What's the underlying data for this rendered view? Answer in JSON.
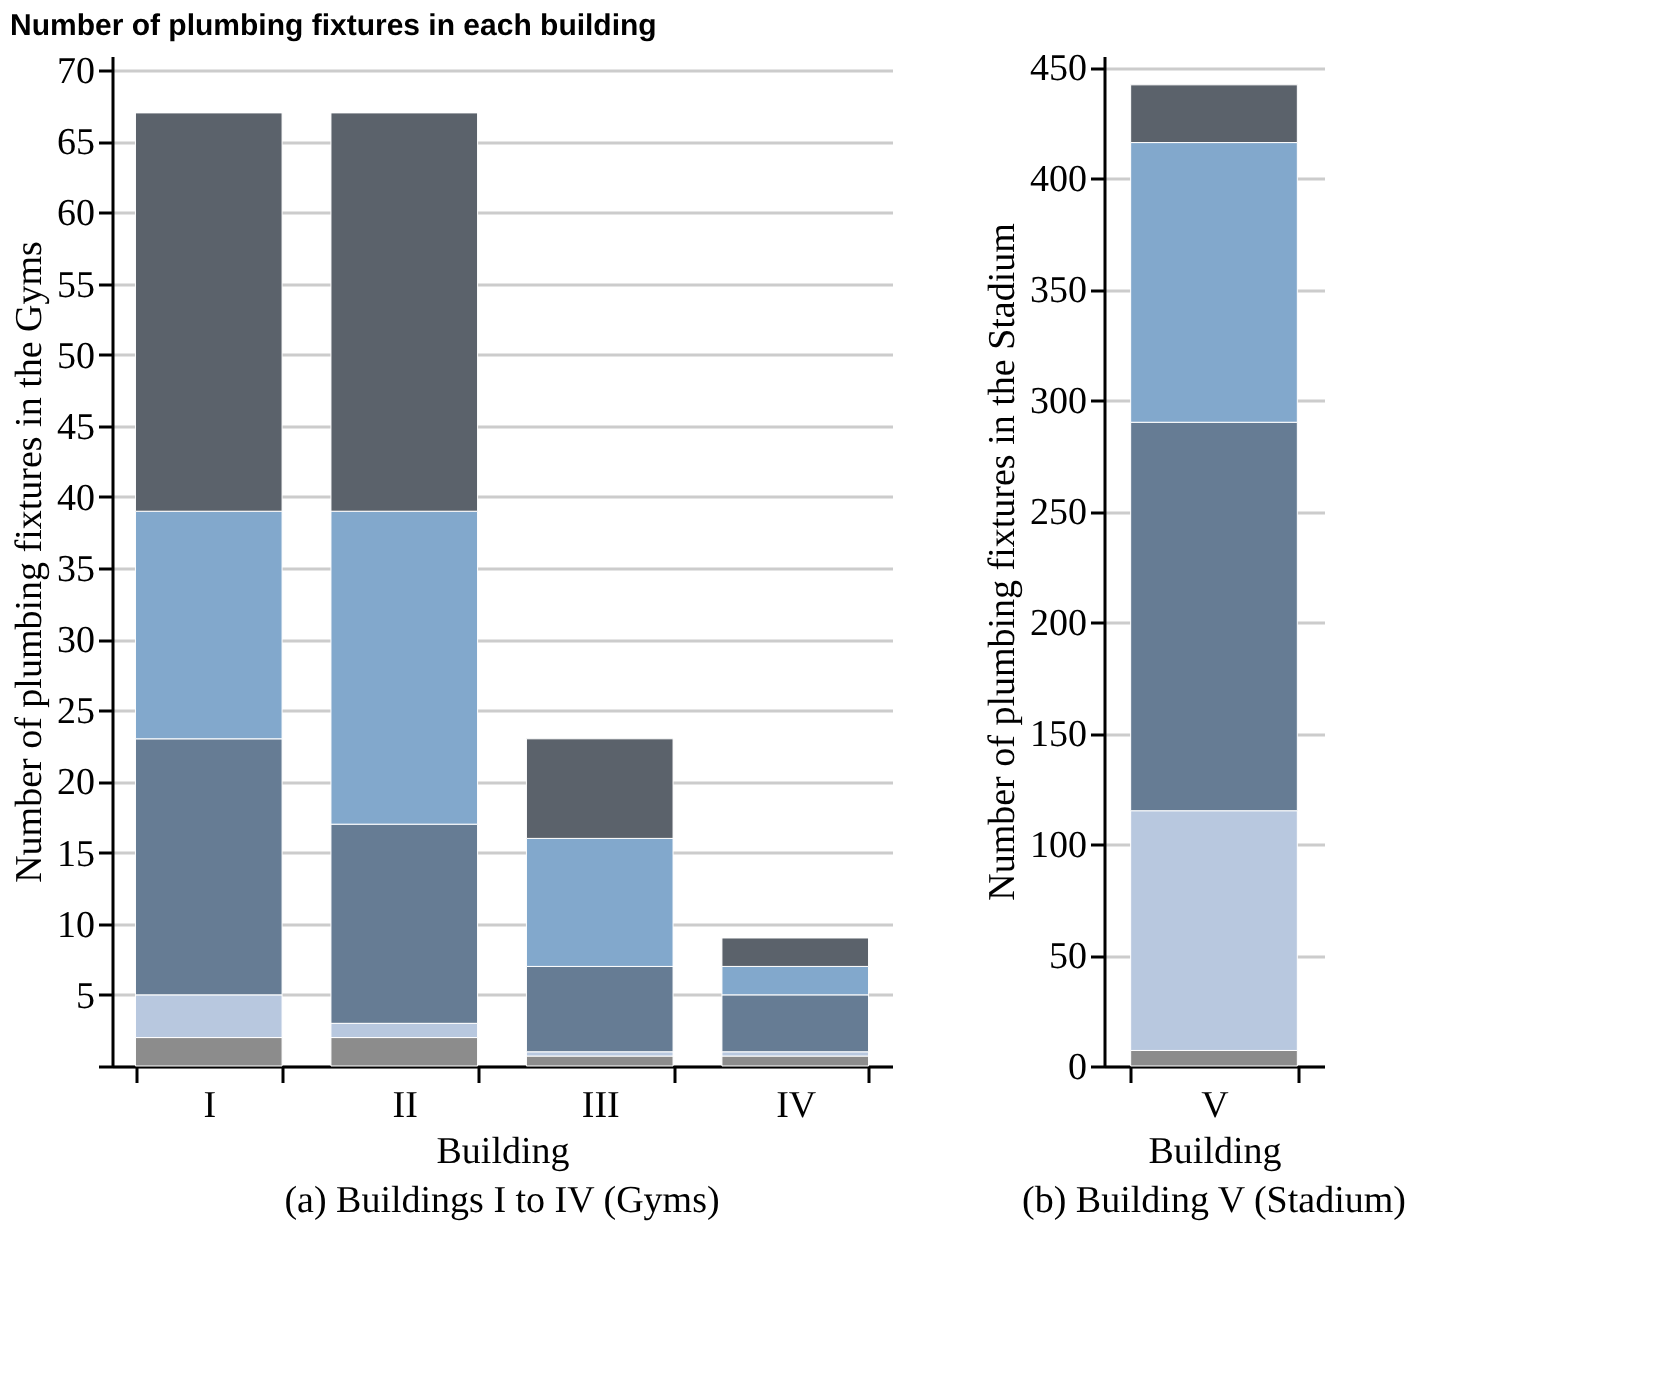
{
  "chart_data": [
    {
      "type": "bar",
      "title": "Number of plumbing fixtures in each building",
      "xlabel": "Building",
      "ylabel": "Number of plumbing fixtures in the Gyms",
      "annotations": [
        "(a) Buildings I to IV (Gyms)"
      ],
      "categories": [
        "I",
        "II",
        "III",
        "IV"
      ],
      "stacked": true,
      "grid": "y",
      "ylim": [
        0,
        71
      ],
      "yticks": [
        {
          "value": 0,
          "label": null
        },
        5,
        10,
        15,
        20,
        25,
        30,
        35,
        40,
        45,
        50,
        55,
        60,
        65,
        70
      ],
      "series": [
        {
          "color": "#8c8c8c",
          "values": [
            2,
            2,
            0.7,
            0.7
          ]
        },
        {
          "color": "#b8c8df",
          "values": [
            3,
            1,
            0.3,
            0.3
          ]
        },
        {
          "color": "#667c94",
          "values": [
            18,
            14,
            6,
            4
          ]
        },
        {
          "color": "#82a8cc",
          "values": [
            16,
            22,
            9,
            2
          ]
        },
        {
          "color": "#5b626b",
          "values": [
            28,
            28,
            7,
            2
          ]
        }
      ]
    },
    {
      "type": "bar",
      "xlabel": "Building",
      "ylabel": "Number of plumbing fixtures in the Stadium",
      "annotations": [
        "(b) Building V (Stadium)"
      ],
      "categories": [
        "V"
      ],
      "stacked": true,
      "grid": "y",
      "ylim": [
        0,
        455
      ],
      "yticks": [
        0,
        50,
        100,
        150,
        200,
        250,
        300,
        350,
        400,
        450
      ],
      "series": [
        {
          "color": "#8c8c8c",
          "values": [
            7
          ]
        },
        {
          "color": "#b8c8df",
          "values": [
            108
          ]
        },
        {
          "color": "#667c94",
          "values": [
            175
          ]
        },
        {
          "color": "#82a8cc",
          "values": [
            126
          ]
        },
        {
          "color": "#5b626b",
          "values": [
            26
          ]
        }
      ]
    }
  ]
}
